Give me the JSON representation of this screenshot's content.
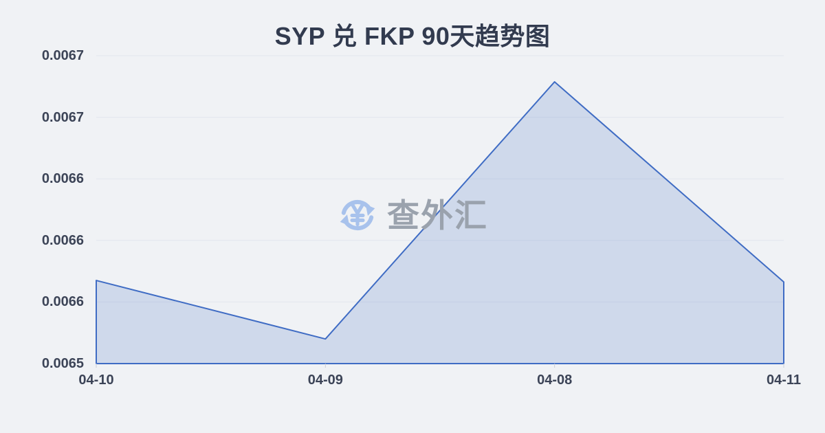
{
  "page": {
    "background": "#f0f2f5"
  },
  "chart_data": {
    "type": "area",
    "title": "SYP 兑 FKP 90天趋势图",
    "title_color": "#323b4f",
    "x": [
      "04-10",
      "04-09",
      "04-08",
      "04-11"
    ],
    "values": [
      0.006574,
      0.006536,
      0.006703,
      0.006573
    ],
    "series_name": "SYP/FKP",
    "xlabel": "",
    "ylabel": "",
    "ylim": [
      0.00652,
      0.00672
    ],
    "y_tick_labels": [
      "0.0067",
      "0.0067",
      "0.0066",
      "0.0066",
      "0.0066",
      "0.0065"
    ],
    "grid": true,
    "legend": "none",
    "line_color": "#3f6cc4",
    "fill_color": "rgba(63,108,196,0.18)",
    "gridline_color": "#e2e6ed",
    "tick_color": "#c9cdd6",
    "axis_label_color": "#3c4457"
  },
  "watermark": {
    "text": "查外汇",
    "icon": "currency-exchange-refresh-icon",
    "icon_color": "#a8c2ec",
    "text_color": "#9aa2ad"
  }
}
